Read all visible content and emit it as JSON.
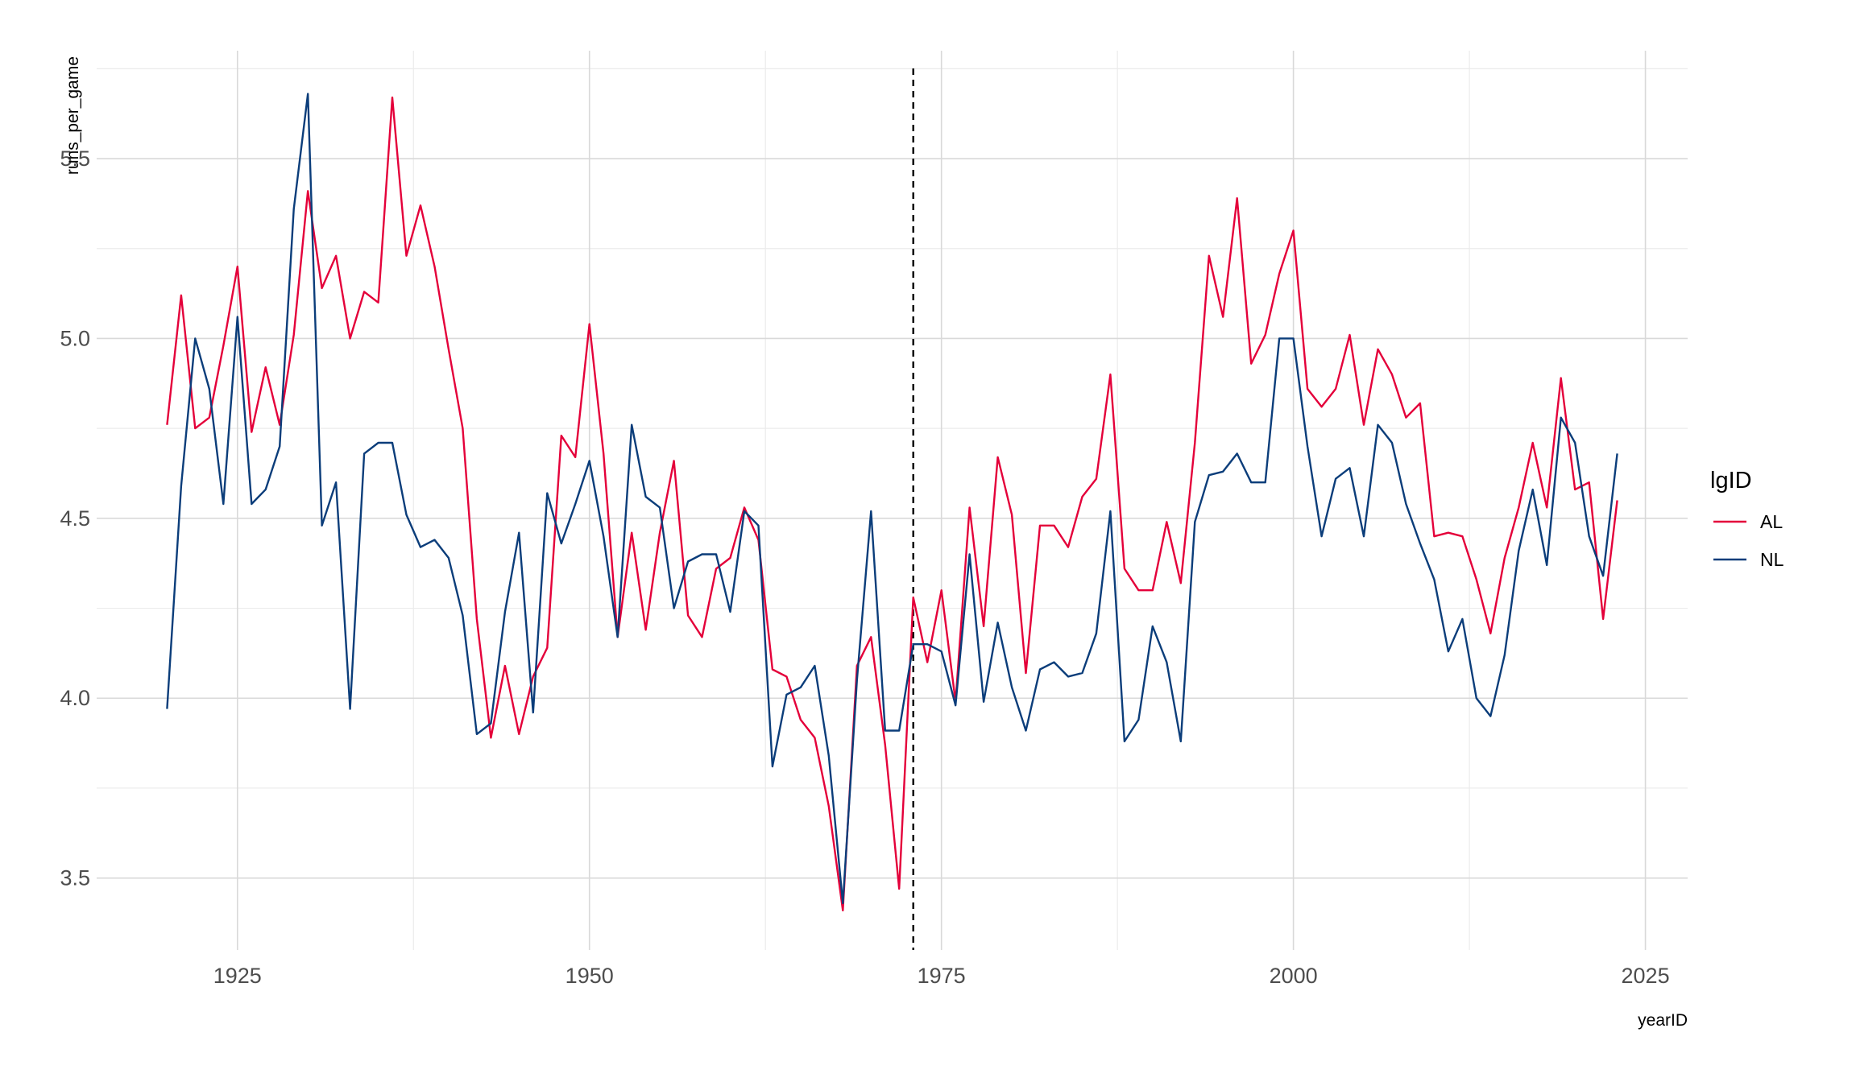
{
  "chart_data": {
    "type": "line",
    "title": "",
    "xlabel": "yearID",
    "ylabel": "runs_per_game",
    "xlim": [
      1915,
      2028
    ],
    "ylim": [
      3.3,
      5.8
    ],
    "x_ticks": [
      1925,
      1950,
      1975,
      2000,
      2025
    ],
    "x_tick_labels": [
      "1925",
      "1950",
      "1975",
      "2000",
      "2025"
    ],
    "y_ticks": [
      3.5,
      4.0,
      4.5,
      5.0,
      5.5
    ],
    "y_tick_labels": [
      "3.5",
      "4.0",
      "4.5",
      "5.0",
      "5.5"
    ],
    "grid": true,
    "legend": {
      "title": "lgID",
      "position": "right"
    },
    "reference_line": {
      "axis": "x",
      "value": 1973,
      "style": "dashed",
      "color": "#000000"
    },
    "x": [
      1920,
      1921,
      1922,
      1923,
      1924,
      1925,
      1926,
      1927,
      1928,
      1929,
      1930,
      1931,
      1932,
      1933,
      1934,
      1935,
      1936,
      1937,
      1938,
      1939,
      1940,
      1941,
      1942,
      1943,
      1944,
      1945,
      1946,
      1947,
      1948,
      1949,
      1950,
      1951,
      1952,
      1953,
      1954,
      1955,
      1956,
      1957,
      1958,
      1959,
      1960,
      1961,
      1962,
      1963,
      1964,
      1965,
      1966,
      1967,
      1968,
      1969,
      1970,
      1971,
      1972,
      1973,
      1974,
      1975,
      1976,
      1977,
      1978,
      1979,
      1980,
      1981,
      1982,
      1983,
      1984,
      1985,
      1986,
      1987,
      1988,
      1989,
      1990,
      1991,
      1992,
      1993,
      1994,
      1995,
      1996,
      1997,
      1998,
      1999,
      2000,
      2001,
      2002,
      2003,
      2004,
      2005,
      2006,
      2007,
      2008,
      2009,
      2010,
      2011,
      2012,
      2013,
      2014,
      2015,
      2016,
      2017,
      2018,
      2019,
      2020,
      2021,
      2022,
      2023
    ],
    "series": [
      {
        "name": "AL",
        "color": "#e4003a",
        "values": [
          4.76,
          5.12,
          4.75,
          4.78,
          4.98,
          5.2,
          4.74,
          4.92,
          4.76,
          5.01,
          5.41,
          5.14,
          5.23,
          5.0,
          5.13,
          5.1,
          5.67,
          5.23,
          5.37,
          5.2,
          4.97,
          4.75,
          4.22,
          3.89,
          4.09,
          3.9,
          4.06,
          4.14,
          4.73,
          4.67,
          5.04,
          4.68,
          4.17,
          4.46,
          4.19,
          4.46,
          4.66,
          4.23,
          4.17,
          4.36,
          4.39,
          4.53,
          4.44,
          4.08,
          4.06,
          3.94,
          3.89,
          3.7,
          3.41,
          4.09,
          4.17,
          3.87,
          3.47,
          4.28,
          4.1,
          4.3,
          3.99,
          4.53,
          4.2,
          4.67,
          4.51,
          4.07,
          4.48,
          4.48,
          4.42,
          4.56,
          4.61,
          4.9,
          4.36,
          4.3,
          4.3,
          4.49,
          4.32,
          4.71,
          5.23,
          5.06,
          5.39,
          4.93,
          5.01,
          5.18,
          5.3,
          4.86,
          4.81,
          4.86,
          5.01,
          4.76,
          4.97,
          4.9,
          4.78,
          4.82,
          4.45,
          4.46,
          4.45,
          4.33,
          4.18,
          4.39,
          4.53,
          4.71,
          4.53,
          4.89,
          4.58,
          4.6,
          4.22,
          4.55
        ]
      },
      {
        "name": "NL",
        "color": "#0b3d7a",
        "values": [
          3.97,
          4.59,
          5.0,
          4.86,
          4.54,
          5.06,
          4.54,
          4.58,
          4.7,
          5.36,
          5.68,
          4.48,
          4.6,
          3.97,
          4.68,
          4.71,
          4.71,
          4.51,
          4.42,
          4.44,
          4.39,
          4.23,
          3.9,
          3.93,
          4.24,
          4.46,
          3.96,
          4.57,
          4.43,
          4.54,
          4.66,
          4.45,
          4.17,
          4.76,
          4.56,
          4.53,
          4.25,
          4.38,
          4.4,
          4.4,
          4.24,
          4.52,
          4.48,
          3.81,
          4.01,
          4.03,
          4.09,
          3.84,
          3.43,
          4.05,
          4.52,
          3.91,
          3.91,
          4.15,
          4.15,
          4.13,
          3.98,
          4.4,
          3.99,
          4.21,
          4.03,
          3.91,
          4.08,
          4.1,
          4.06,
          4.07,
          4.18,
          4.52,
          3.88,
          3.94,
          4.2,
          4.1,
          3.88,
          4.49,
          4.62,
          4.63,
          4.68,
          4.6,
          4.6,
          5.0,
          5.0,
          4.7,
          4.45,
          4.61,
          4.64,
          4.45,
          4.76,
          4.71,
          4.54,
          4.43,
          4.33,
          4.13,
          4.22,
          4.0,
          3.95,
          4.12,
          4.41,
          4.58,
          4.37,
          4.78,
          4.71,
          4.45,
          4.34,
          4.68
        ]
      }
    ]
  }
}
